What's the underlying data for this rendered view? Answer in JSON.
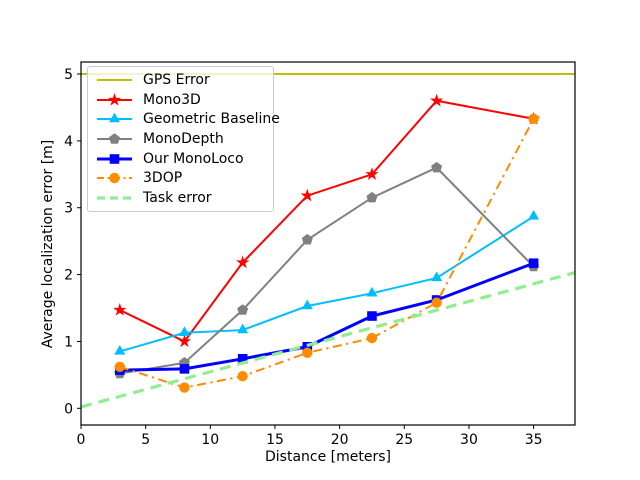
{
  "chart_data": {
    "type": "line",
    "title": "",
    "xlabel": "Distance [meters]",
    "ylabel": "Average localization error [m]",
    "xlim": [
      0,
      38.2
    ],
    "ylim": [
      -0.25,
      5.18
    ],
    "xticks": [
      0,
      5,
      10,
      15,
      20,
      25,
      30,
      35
    ],
    "yticks": [
      0,
      1,
      2,
      3,
      4,
      5
    ],
    "grid": false,
    "legend_position": "upper left",
    "categories_x": [
      3,
      8,
      12.5,
      17.5,
      22.5,
      27.5,
      35
    ],
    "series": [
      {
        "name": "GPS Error",
        "color": "#bfbf00",
        "style": "solid",
        "marker": "none",
        "width": 2,
        "x": [
          0,
          38.2
        ],
        "y": [
          5.0,
          5.0
        ]
      },
      {
        "name": "Mono3D",
        "color": "#ff0000",
        "style": "solid",
        "marker": "star",
        "width": 2,
        "x": [
          3,
          8,
          12.5,
          17.5,
          22.5,
          27.5,
          35
        ],
        "y": [
          1.47,
          1.0,
          2.18,
          3.18,
          3.5,
          4.6,
          4.33
        ]
      },
      {
        "name": "Geometric Baseline",
        "color": "#00bfff",
        "style": "solid",
        "marker": "triangle",
        "width": 2,
        "x": [
          3,
          8,
          12.5,
          17.5,
          22.5,
          27.5,
          35
        ],
        "y": [
          0.85,
          1.13,
          1.17,
          1.53,
          1.72,
          1.95,
          2.87
        ]
      },
      {
        "name": "MonoDepth",
        "color": "#808080",
        "style": "solid",
        "marker": "pentagon",
        "width": 2,
        "x": [
          3,
          8,
          12.5,
          17.5,
          22.5,
          27.5,
          35
        ],
        "y": [
          0.52,
          0.68,
          1.47,
          2.52,
          3.15,
          3.6,
          2.12
        ]
      },
      {
        "name": "Our MonoLoco",
        "color": "#0000ff",
        "style": "solid",
        "marker": "square",
        "width": 3,
        "x": [
          3,
          8,
          12.5,
          17.5,
          22.5,
          27.5,
          35
        ],
        "y": [
          0.57,
          0.59,
          0.74,
          0.92,
          1.38,
          1.62,
          2.17
        ]
      },
      {
        "name": "3DOP",
        "color": "#ff8c00",
        "style": "dashdot",
        "marker": "circle",
        "width": 2,
        "x": [
          3,
          8,
          12.5,
          17.5,
          22.5,
          27.5,
          35
        ],
        "y": [
          0.62,
          0.31,
          0.48,
          0.83,
          1.05,
          1.58,
          4.33
        ]
      },
      {
        "name": "Task error",
        "color": "#90ee90",
        "style": "dashed",
        "marker": "none",
        "width": 3.2,
        "x": [
          0,
          38.2
        ],
        "y": [
          0.02,
          2.03
        ]
      }
    ]
  }
}
